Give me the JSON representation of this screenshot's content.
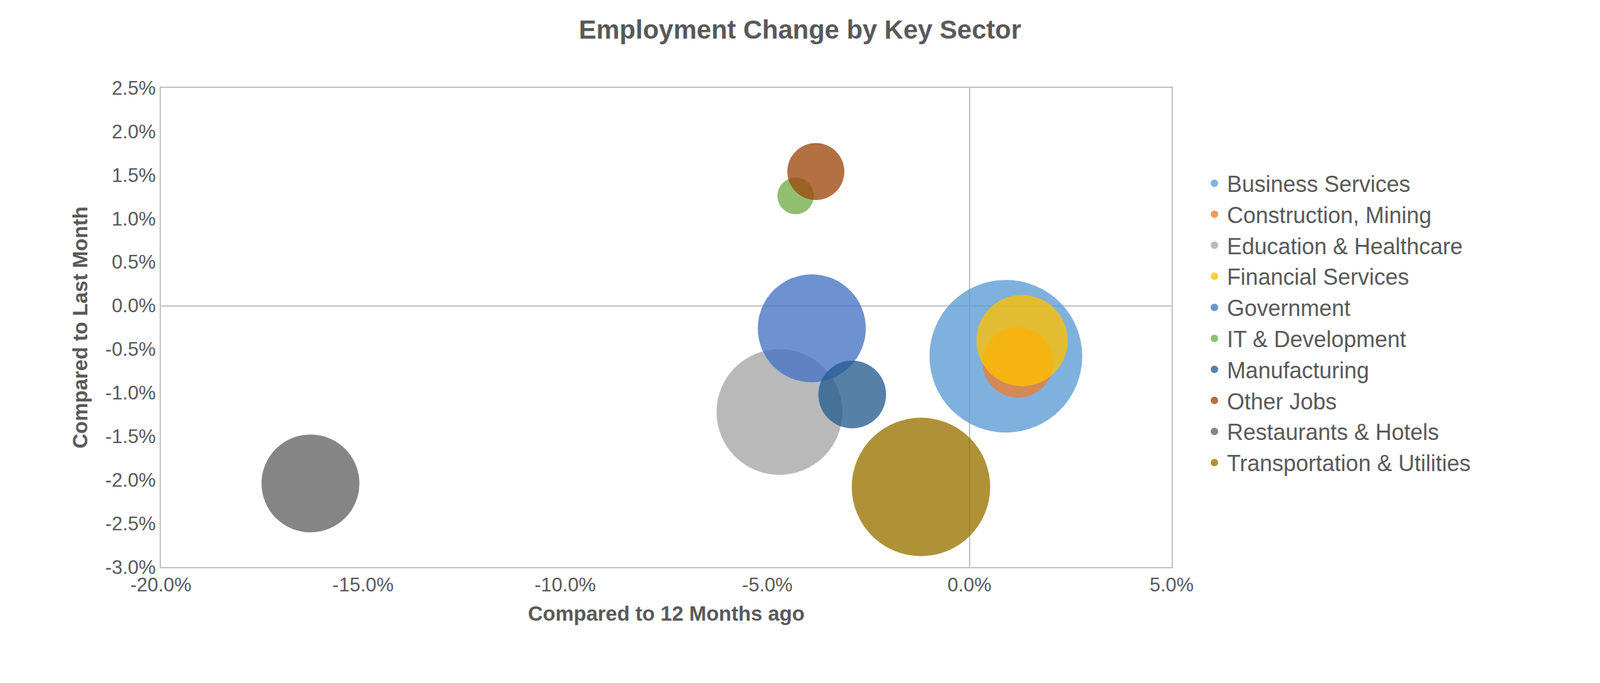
{
  "chart_data": {
    "type": "bubble",
    "title": "Employment Change by Key Sector",
    "x_label": "Compared to 12 Months ago",
    "y_label": "Compared to Last Month",
    "xlim": [
      -20,
      5
    ],
    "xticks": [
      {
        "value": -20,
        "label": "-20.0%"
      },
      {
        "value": -15,
        "label": "-15.0%"
      },
      {
        "value": -10,
        "label": "-10.0%"
      },
      {
        "value": -5,
        "label": "-5.0%"
      },
      {
        "value": 0,
        "label": "0.0%"
      },
      {
        "value": 5,
        "label": "5.0%"
      }
    ],
    "ylim": [
      -3,
      2.5
    ],
    "yticks": [
      {
        "value": -3,
        "label": "-3.0%"
      },
      {
        "value": -2.5,
        "label": "-2.5%"
      },
      {
        "value": -2,
        "label": "-2.0%"
      },
      {
        "value": -1.5,
        "label": "-1.5%"
      },
      {
        "value": -1,
        "label": "-1.0%"
      },
      {
        "value": -0.5,
        "label": "-0.5%"
      },
      {
        "value": 0,
        "label": "0.0%"
      },
      {
        "value": 0.5,
        "label": "0.5%"
      },
      {
        "value": 1,
        "label": "1.0%"
      },
      {
        "value": 1.5,
        "label": "1.5%"
      },
      {
        "value": 2,
        "label": "2.0%"
      },
      {
        "value": 2.5,
        "label": "2.5%"
      }
    ],
    "grid": false,
    "legend": "right",
    "series": [
      {
        "name": "Business Services",
        "color": "#5b9bd5",
        "x": [
          0.9
        ],
        "values": [
          -0.58
        ],
        "sizes": [
          56
        ]
      },
      {
        "name": "Construction, Mining",
        "color": "#ed7d31",
        "x": [
          1.2
        ],
        "values": [
          -0.65
        ],
        "sizes": [
          12
        ]
      },
      {
        "name": "Education & Healthcare",
        "color": "#a5a5a5",
        "x": [
          -4.7
        ],
        "values": [
          -1.22
        ],
        "sizes": [
          38
        ]
      },
      {
        "name": "Financial Services",
        "color": "#ffc000",
        "x": [
          1.3
        ],
        "values": [
          -0.4
        ],
        "sizes": [
          20
        ]
      },
      {
        "name": "Government",
        "color": "#4472c4",
        "x": [
          -3.9
        ],
        "values": [
          -0.26
        ],
        "sizes": [
          28
        ]
      },
      {
        "name": "IT & Development",
        "color": "#70ad47",
        "x": [
          -4.3
        ],
        "values": [
          1.26
        ],
        "sizes": [
          3.2
        ]
      },
      {
        "name": "Manufacturing",
        "color": "#255e91",
        "x": [
          -2.9
        ],
        "values": [
          -1.02
        ],
        "sizes": [
          11
        ]
      },
      {
        "name": "Other Jobs",
        "color": "#9e480e",
        "x": [
          -3.8
        ],
        "values": [
          1.54
        ],
        "sizes": [
          7.8
        ]
      },
      {
        "name": "Restaurants & Hotels",
        "color": "#636363",
        "x": [
          -16.3
        ],
        "values": [
          -2.04
        ],
        "sizes": [
          23
        ]
      },
      {
        "name": "Transportation & Utilities",
        "color": "#997300",
        "x": [
          -1.2
        ],
        "values": [
          -2.08
        ],
        "sizes": [
          46
        ]
      }
    ]
  }
}
